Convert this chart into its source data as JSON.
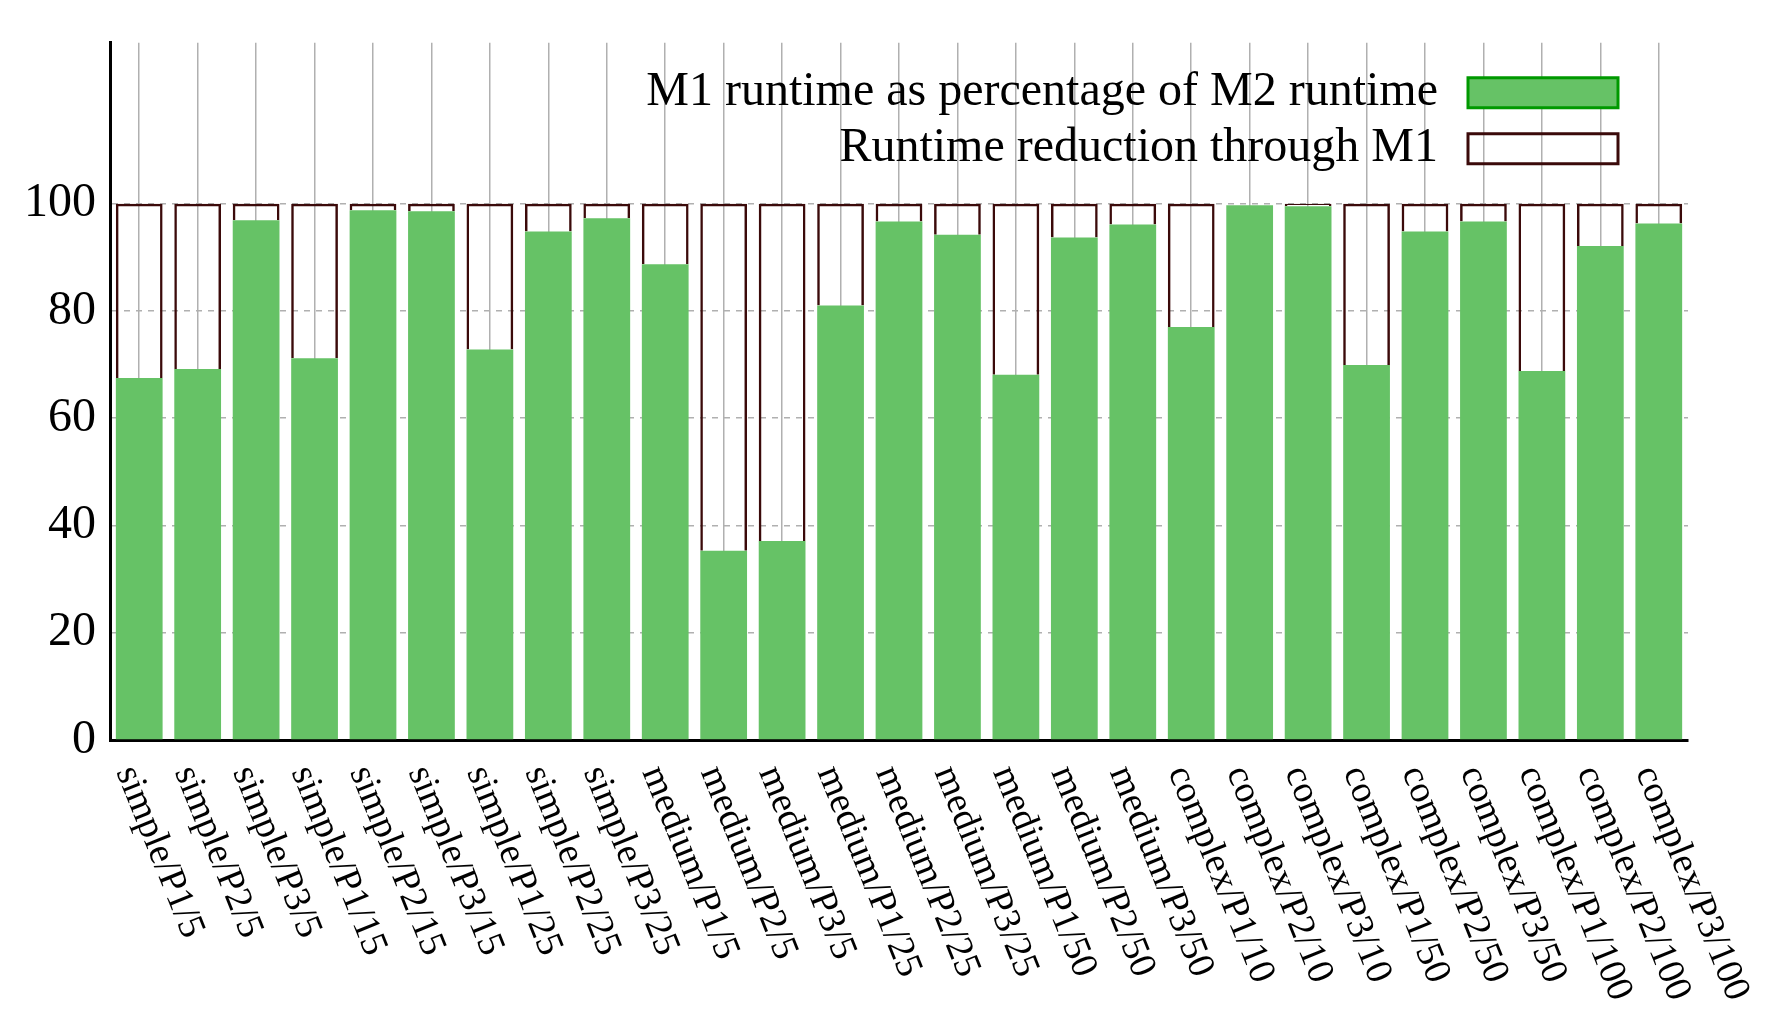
{
  "chart_data": {
    "type": "bar",
    "stacked": true,
    "categories": [
      "simple/P1/5",
      "simple/P2/5",
      "simple/P3/5",
      "simple/P1/15",
      "simple/P2/15",
      "simple/P3/15",
      "simple/P1/25",
      "simple/P2/25",
      "simple/P3/25",
      "medium/P1/5",
      "medium/P2/5",
      "medium/P3/5",
      "medium/P1/25",
      "medium/P2/25",
      "medium/P3/25",
      "medium/P1/50",
      "medium/P2/50",
      "medium/P3/50",
      "complex/P1/10",
      "complex/P2/10",
      "complex/P3/10",
      "complex/P1/50",
      "complex/P2/50",
      "complex/P3/50",
      "complex/P1/100",
      "complex/P2/100",
      "complex/P3/100"
    ],
    "series": [
      {
        "name": "M1 runtime as percentage of M2 runtime",
        "color": "#66c266",
        "values": [
          67.5,
          69.2,
          96.9,
          71.2,
          98.8,
          98.6,
          72.8,
          94.8,
          97.3,
          88.7,
          35.3,
          37.1,
          81.0,
          96.7,
          94.2,
          68.1,
          93.7,
          96.1,
          77.0,
          99.7,
          99.5,
          69.9,
          94.8,
          96.7,
          68.8,
          92.1,
          96.3
        ]
      },
      {
        "name": "Runtime reduction through M1",
        "color": "#3b0a0a",
        "values": [
          32.5,
          30.8,
          3.1,
          28.8,
          1.2,
          1.4,
          27.2,
          5.2,
          2.7,
          11.3,
          64.7,
          62.9,
          19.0,
          3.3,
          5.8,
          31.9,
          6.3,
          3.9,
          23.0,
          null,
          0.5,
          30.1,
          5.2,
          3.3,
          31.2,
          7.9,
          3.7
        ]
      }
    ],
    "ylim": [
      0,
      130
    ],
    "yticks": [
      0,
      20,
      40,
      60,
      80,
      100
    ],
    "grid": true,
    "legend": "top right"
  }
}
